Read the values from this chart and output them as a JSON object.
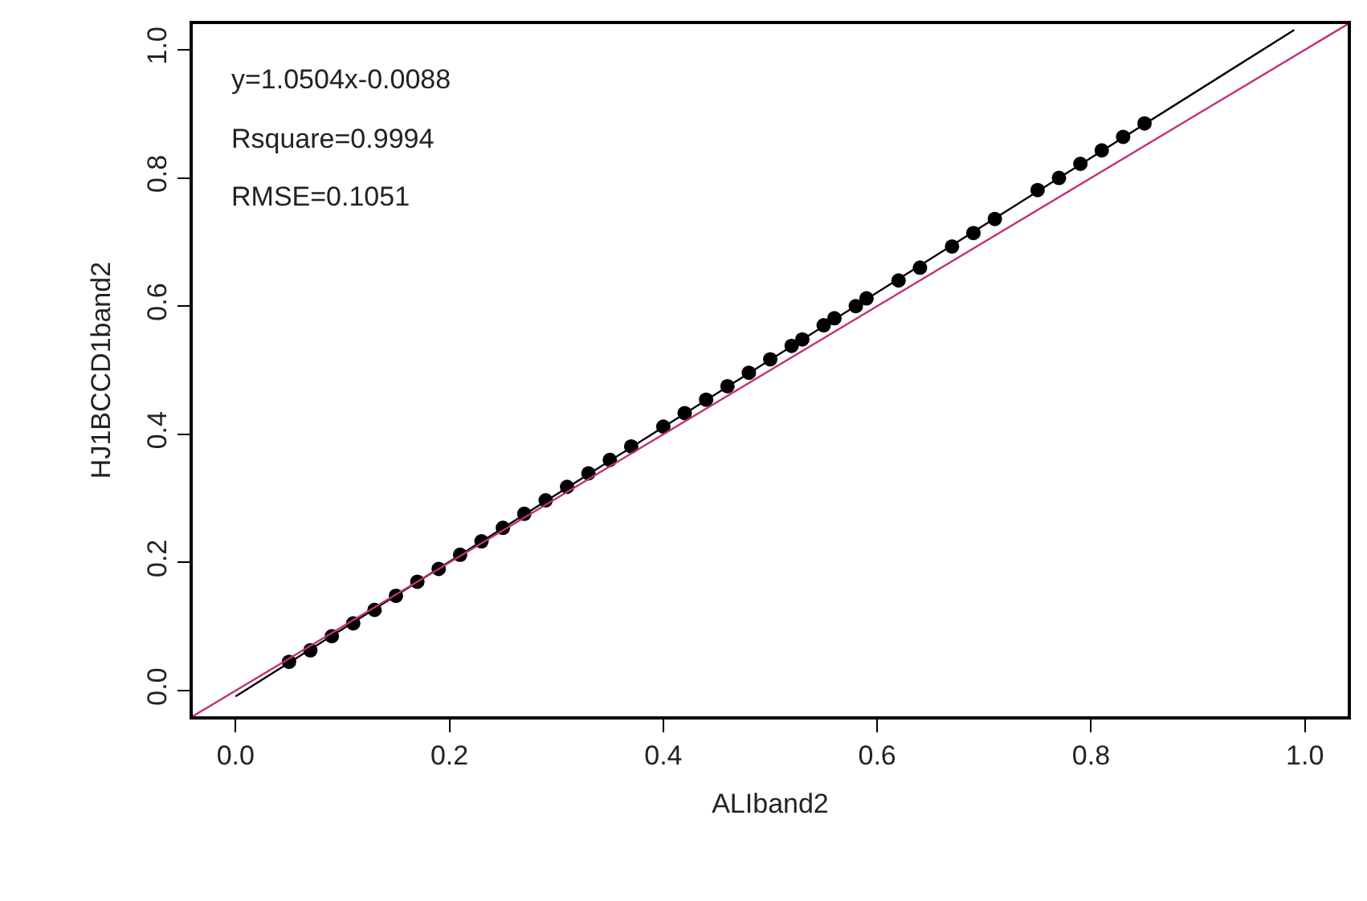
{
  "chart_data": {
    "type": "scatter",
    "xlabel": "ALIband2",
    "ylabel": "HJ1BCCD1band2",
    "xlim": [
      -0.04,
      1.04
    ],
    "ylim": [
      -0.04,
      1.04
    ],
    "xticks": [
      {
        "value": 0,
        "label": "0.0"
      },
      0.2,
      0.4,
      0.6,
      0.8,
      {
        "value": 1,
        "label": "1.0"
      }
    ],
    "yticks": [
      {
        "value": 0,
        "label": "0.0"
      },
      0.2,
      0.4,
      0.6,
      0.8,
      {
        "value": 1,
        "label": "1.0"
      }
    ],
    "annotations": [
      "y=1.0504x-0.0088",
      "Rsquare=0.9994",
      "RMSE=0.1051"
    ],
    "series": [
      {
        "marker": "circle",
        "color": "#000000",
        "x": [
          0.05,
          0.07,
          0.09,
          0.11,
          0.13,
          0.15,
          0.17,
          0.19,
          0.21,
          0.23,
          0.25,
          0.27,
          0.29,
          0.31,
          0.33,
          0.35,
          0.37,
          0.4,
          0.42,
          0.44,
          0.46,
          0.48,
          0.5,
          0.52,
          0.53,
          0.55,
          0.56,
          0.58,
          0.59,
          0.62,
          0.64,
          0.67,
          0.69,
          0.71,
          0.75,
          0.77,
          0.79,
          0.81,
          0.83,
          0.85
        ],
        "values": [
          0.045,
          0.063,
          0.085,
          0.105,
          0.126,
          0.148,
          0.17,
          0.19,
          0.212,
          0.233,
          0.254,
          0.276,
          0.297,
          0.318,
          0.339,
          0.36,
          0.381,
          0.412,
          0.433,
          0.454,
          0.475,
          0.496,
          0.517,
          0.538,
          0.548,
          0.57,
          0.581,
          0.6,
          0.612,
          0.64,
          0.66,
          0.693,
          0.714,
          0.736,
          0.781,
          0.8,
          0.822,
          0.843,
          0.864,
          0.885
        ]
      },
      {
        "type": "line",
        "marker": "none",
        "color": "#000000",
        "line_style": "solid",
        "x": [
          0.0,
          0.99
        ],
        "values": [
          -0.009,
          1.031
        ]
      },
      {
        "type": "line",
        "marker": "none",
        "color": "#c0307a",
        "line_style": "solid",
        "x": [
          -0.04,
          1.04
        ],
        "values": [
          -0.04,
          1.04
        ]
      }
    ]
  }
}
